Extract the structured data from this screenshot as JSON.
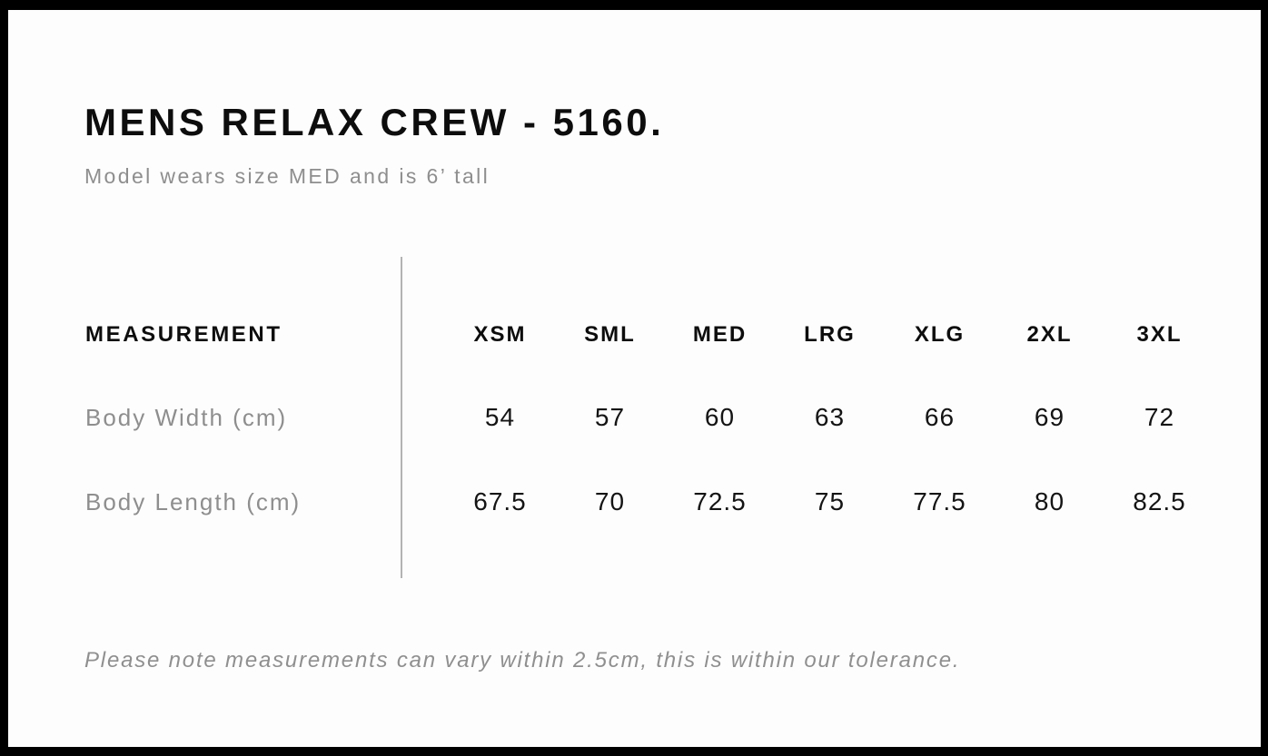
{
  "page": {
    "title": "MENS RELAX CREW - 5160.",
    "subtitle": "Model wears size MED and is 6’ tall",
    "note": "Please note measurements can vary within 2.5cm, this is within our tolerance."
  },
  "size_chart": {
    "measurement_header": "MEASUREMENT",
    "sizes": [
      "XSM",
      "SML",
      "MED",
      "LRG",
      "XLG",
      "2XL",
      "3XL"
    ],
    "rows": [
      {
        "label": "Body Width (cm)",
        "values": [
          "54",
          "57",
          "60",
          "63",
          "66",
          "69",
          "72"
        ]
      },
      {
        "label": "Body Length (cm)",
        "values": [
          "67.5",
          "70",
          "72.5",
          "75",
          "77.5",
          "80",
          "82.5"
        ]
      }
    ]
  },
  "chart_data": {
    "type": "table",
    "title": "MENS RELAX CREW - 5160.",
    "columns": [
      "MEASUREMENT",
      "XSM",
      "SML",
      "MED",
      "LRG",
      "XLG",
      "2XL",
      "3XL"
    ],
    "rows": [
      [
        "Body Width (cm)",
        54,
        57,
        60,
        63,
        66,
        69,
        72
      ],
      [
        "Body Length (cm)",
        67.5,
        70,
        72.5,
        75,
        77.5,
        80,
        82.5
      ]
    ]
  },
  "colors": {
    "frame_border": "#000000",
    "text_primary": "#0d0d0d",
    "text_muted": "#8e8e8e",
    "divider": "#b3b3b3",
    "background": "#fdfdfd"
  }
}
